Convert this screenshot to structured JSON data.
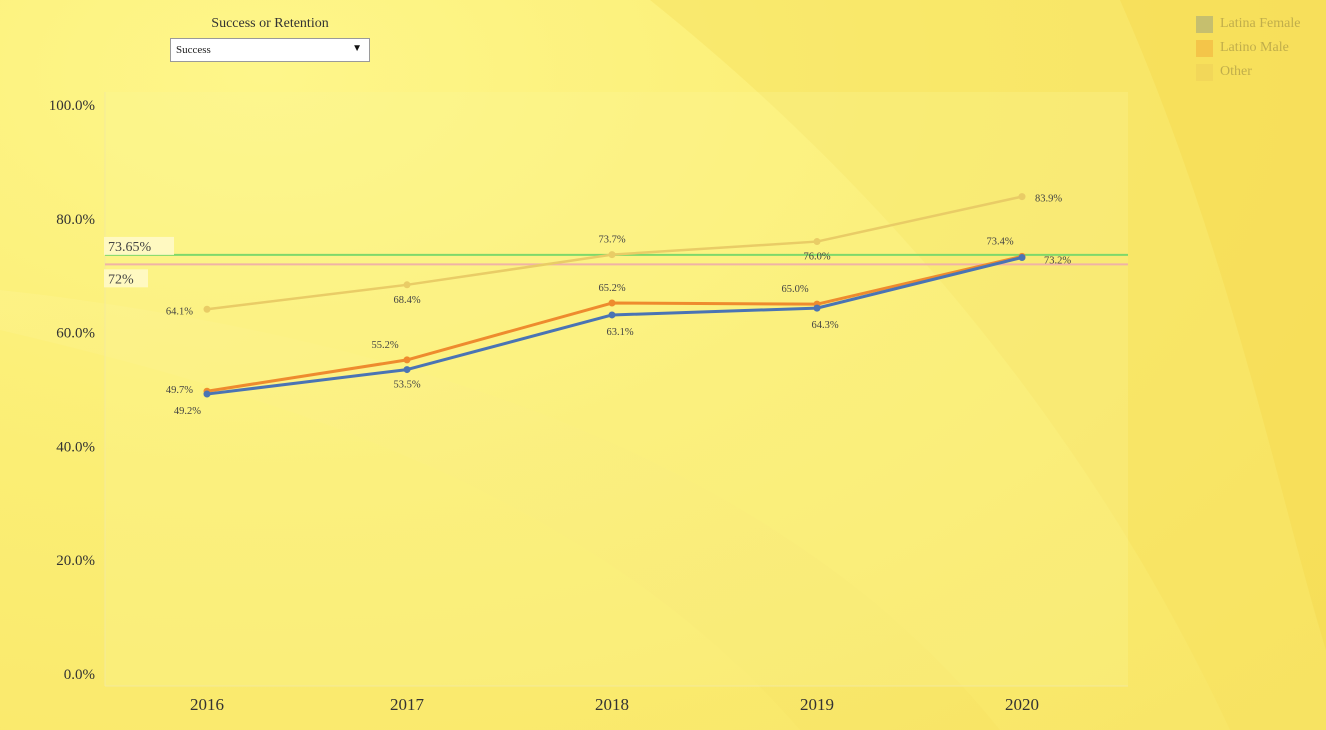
{
  "filter": {
    "title": "Success or Retention",
    "selected": "Success"
  },
  "colors": {
    "latina_female": "#4a74b4",
    "latino_male": "#ee8b2e",
    "other": "#e9cc66",
    "ref_green": "#7ed86a",
    "ref_pink": "#f0b3a6"
  },
  "chart_data": {
    "type": "line",
    "categories": [
      "2016",
      "2017",
      "2018",
      "2019",
      "2020"
    ],
    "ylim": [
      0,
      100
    ],
    "y_ticks": [
      "0.0%",
      "20.0%",
      "40.0%",
      "60.0%",
      "80.0%",
      "100.0%"
    ],
    "legend_position": "top-right",
    "grid": false,
    "series": [
      {
        "name": "Latina Female",
        "values": [
          49.2,
          53.5,
          63.1,
          64.3,
          73.2
        ],
        "labels": [
          "49.2%",
          "53.5%",
          "63.1%",
          "64.3%",
          "73.2%"
        ]
      },
      {
        "name": "Latino Male",
        "values": [
          49.7,
          55.2,
          65.2,
          65.0,
          73.4
        ],
        "labels": [
          "49.7%",
          "55.2%",
          "65.2%",
          "65.0%",
          "73.4%"
        ]
      },
      {
        "name": "Other",
        "values": [
          64.1,
          68.4,
          73.7,
          76.0,
          83.9
        ],
        "labels": [
          "64.1%",
          "68.4%",
          "73.7%",
          "76.0%",
          "83.9%"
        ]
      }
    ],
    "reference_lines": [
      {
        "value": 73.65,
        "label": "73.65%",
        "color": "#7ed86a"
      },
      {
        "value": 72,
        "label": "72%",
        "color": "#f0b3a6"
      }
    ]
  }
}
